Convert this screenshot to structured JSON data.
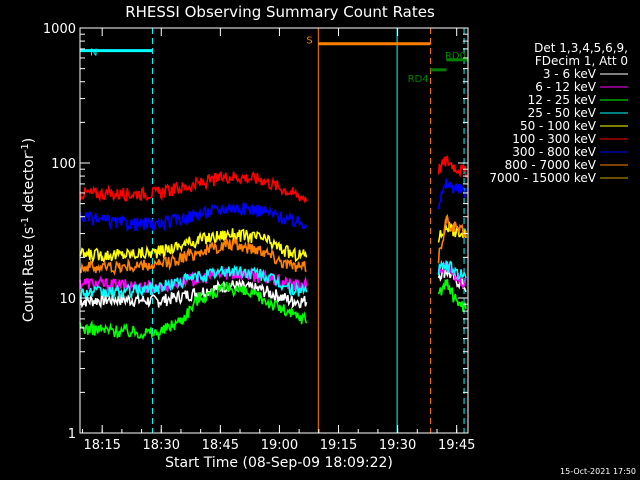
{
  "chart_data": {
    "type": "line",
    "title": "RHESSI Observing Summary Count Rates",
    "xlabel": "Start Time (08-Sep-09 18:09:22)",
    "ylabel_main": "Count Rate (s",
    "ylabel_sup1": "-1",
    "ylabel_mid": " detector",
    "ylabel_sup2": "-1",
    "ylabel_end": ")",
    "yscale": "log",
    "ylim": [
      1,
      1000
    ],
    "xlim_minutes": [
      0,
      98.5
    ],
    "x_ticks": [
      {
        "label": "18:15",
        "min": 5.63
      },
      {
        "label": "18:30",
        "min": 20.63
      },
      {
        "label": "18:45",
        "min": 35.63
      },
      {
        "label": "19:00",
        "min": 50.63
      },
      {
        "label": "19:15",
        "min": 65.63
      },
      {
        "label": "19:30",
        "min": 80.63
      },
      {
        "label": "19:45",
        "min": 95.63
      }
    ],
    "y_ticks": [
      {
        "label": "1",
        "value": 1
      },
      {
        "label": "10",
        "value": 10
      },
      {
        "label": "100",
        "value": 100
      },
      {
        "label": "1000",
        "value": 1000
      }
    ],
    "legend_header": [
      "Det 1,3,4,5,6,9,",
      "FDecim 1, Att 0"
    ],
    "series": [
      {
        "name": "3 - 6 keV",
        "color": "#ffffff",
        "x": [
          0,
          10,
          20,
          30,
          38,
          46,
          54,
          57.5,
          91,
          93,
          95,
          98
        ],
        "y": [
          9.5,
          9.8,
          9.5,
          11,
          12.5,
          11.5,
          9.5,
          9.5,
          15,
          16,
          14,
          12
        ]
      },
      {
        "name": "6 - 12 keV",
        "color": "#ff00ff",
        "x": [
          0,
          10,
          20,
          30,
          38,
          46,
          54,
          57.5,
          91,
          93,
          95,
          98
        ],
        "y": [
          13,
          12.5,
          12,
          14,
          15.5,
          14.5,
          12.5,
          12.5,
          16,
          17,
          15,
          13
        ]
      },
      {
        "name": "12 - 25 keV",
        "color": "#00ff00",
        "x": [
          0,
          10,
          20,
          26,
          30,
          38,
          46,
          54,
          57.5,
          91,
          93,
          95,
          98
        ],
        "y": [
          6,
          5.7,
          5.5,
          7,
          10,
          12,
          10,
          7.5,
          7,
          11,
          13,
          10,
          8.5
        ]
      },
      {
        "name": "25 - 50 keV",
        "color": "#00ffff",
        "x": [
          0,
          10,
          20,
          30,
          38,
          46,
          54,
          57.5,
          91,
          93,
          95,
          98
        ],
        "y": [
          11,
          11,
          12,
          14.5,
          16,
          15,
          11.5,
          11.5,
          16,
          17.5,
          16,
          14
        ]
      },
      {
        "name": "50 - 100 keV",
        "color": "#ffff00",
        "x": [
          0,
          10,
          20,
          30,
          38,
          46,
          54,
          57.5,
          91,
          93,
          95,
          98
        ],
        "y": [
          21,
          21,
          22,
          27,
          30,
          28,
          21,
          21,
          28,
          34,
          32,
          29
        ]
      },
      {
        "name": "100 - 300 keV",
        "color": "#ff0000",
        "x": [
          0,
          10,
          20,
          30,
          38,
          46,
          54,
          57.5,
          91,
          93,
          95,
          98
        ],
        "y": [
          60,
          59,
          60,
          70,
          80,
          76,
          60,
          55,
          90,
          105,
          95,
          85
        ]
      },
      {
        "name": "300 - 800 keV",
        "color": "#0000ff",
        "x": [
          0,
          10,
          20,
          30,
          38,
          46,
          54,
          57.5,
          91,
          93,
          95,
          98
        ],
        "y": [
          40,
          36,
          35,
          42,
          47,
          45,
          37,
          36,
          50,
          70,
          66,
          60
        ]
      },
      {
        "name": "800 - 7000 keV",
        "color": "#ff8000",
        "x": [
          0,
          10,
          20,
          30,
          38,
          46,
          54,
          57.5,
          91,
          93,
          95,
          98
        ],
        "y": [
          17,
          17,
          17.5,
          22,
          25,
          23,
          17,
          17,
          20,
          38,
          34,
          30
        ]
      },
      {
        "name": "7000 - 15000 keV",
        "color": "#c8a000",
        "x": [],
        "y": []
      }
    ],
    "annotations": [
      {
        "label": "N",
        "color": "#00ffff",
        "x_start": 0,
        "x_end": 18.4,
        "y": 680
      },
      {
        "label": "S",
        "color": "#ff8000",
        "x_start": 60.5,
        "x_end": 89,
        "y": 765
      },
      {
        "label": "RD4",
        "color": "#008000",
        "x_start": 89,
        "x_end": 93,
        "y": 490
      },
      {
        "label": "RD0",
        "color": "#008000",
        "x_start": 93,
        "x_end": 98.5,
        "y": 580
      }
    ],
    "vertical_markers_min": [
      {
        "min": 18.4,
        "color": "#00ffff",
        "style": "dashed"
      },
      {
        "min": 60.5,
        "color": "#ff8000",
        "style": "solid"
      },
      {
        "min": 80.5,
        "color": "#00ffff",
        "style": "solid"
      },
      {
        "min": 89,
        "color": "#ff8000",
        "style": "dashed"
      },
      {
        "min": 97.5,
        "color": "#00ffff",
        "style": "dashed"
      }
    ]
  },
  "footer_date": "15-Oct-2021 17:50"
}
